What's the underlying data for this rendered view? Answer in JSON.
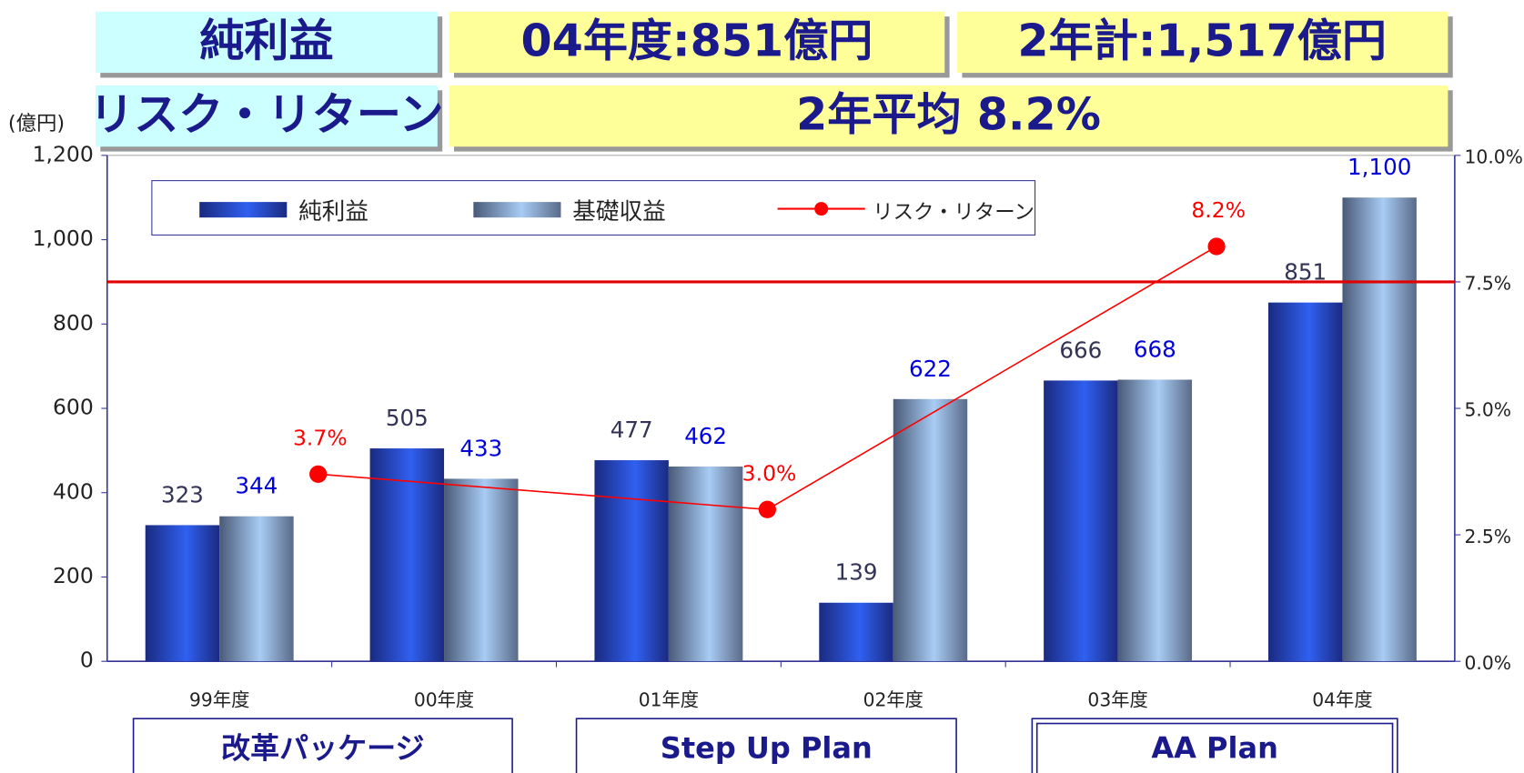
{
  "header": {
    "title": "純利益",
    "fy04": "04年度:851億円",
    "two_year_total": "2年計:1,517億円",
    "subtitle": "リスク・リターン",
    "two_year_avg": "2年平均  8.2%"
  },
  "chart_data": {
    "type": "bar",
    "y_unit": "(億円)",
    "categories": [
      "99年度",
      "00年度",
      "01年度",
      "02年度",
      "03年度",
      "04年度"
    ],
    "series": [
      {
        "name": "純利益",
        "color": "#3060f0",
        "values": [
          323,
          505,
          477,
          139,
          666,
          851
        ]
      },
      {
        "name": "基礎収益",
        "color": "#a8ccf4",
        "values": [
          344,
          433,
          462,
          622,
          668,
          1100
        ],
        "value_labels": [
          "344",
          "433",
          "462",
          "622",
          "668",
          "1,100"
        ]
      }
    ],
    "line_series": {
      "name": "リスク・リターン",
      "color": "#ff0000",
      "axis": "y2",
      "values": [
        3.7,
        3.0,
        8.2
      ],
      "value_labels": [
        "3.7%",
        "3.0%",
        "8.2%"
      ]
    },
    "reference_line": {
      "value": 7.5,
      "axis": "y2",
      "color": "#e00000"
    },
    "ylim": [
      0,
      1200
    ],
    "yticks": [
      0,
      200,
      400,
      600,
      800,
      {
        "value": 1000,
        "label": "1,000"
      },
      {
        "value": 1200,
        "label": "1,200"
      }
    ],
    "y2lim": [
      0,
      10
    ],
    "y2ticks": [
      {
        "value": 0,
        "label": "0.0%"
      },
      {
        "value": 2.5,
        "label": "2.5%"
      },
      {
        "value": 5,
        "label": "5.0%"
      },
      {
        "value": 7.5,
        "label": "7.5%"
      },
      {
        "value": 10,
        "label": "10.0%"
      }
    ],
    "groups": [
      "改革パッケージ",
      "Step Up Plan",
      "AA Plan"
    ]
  }
}
